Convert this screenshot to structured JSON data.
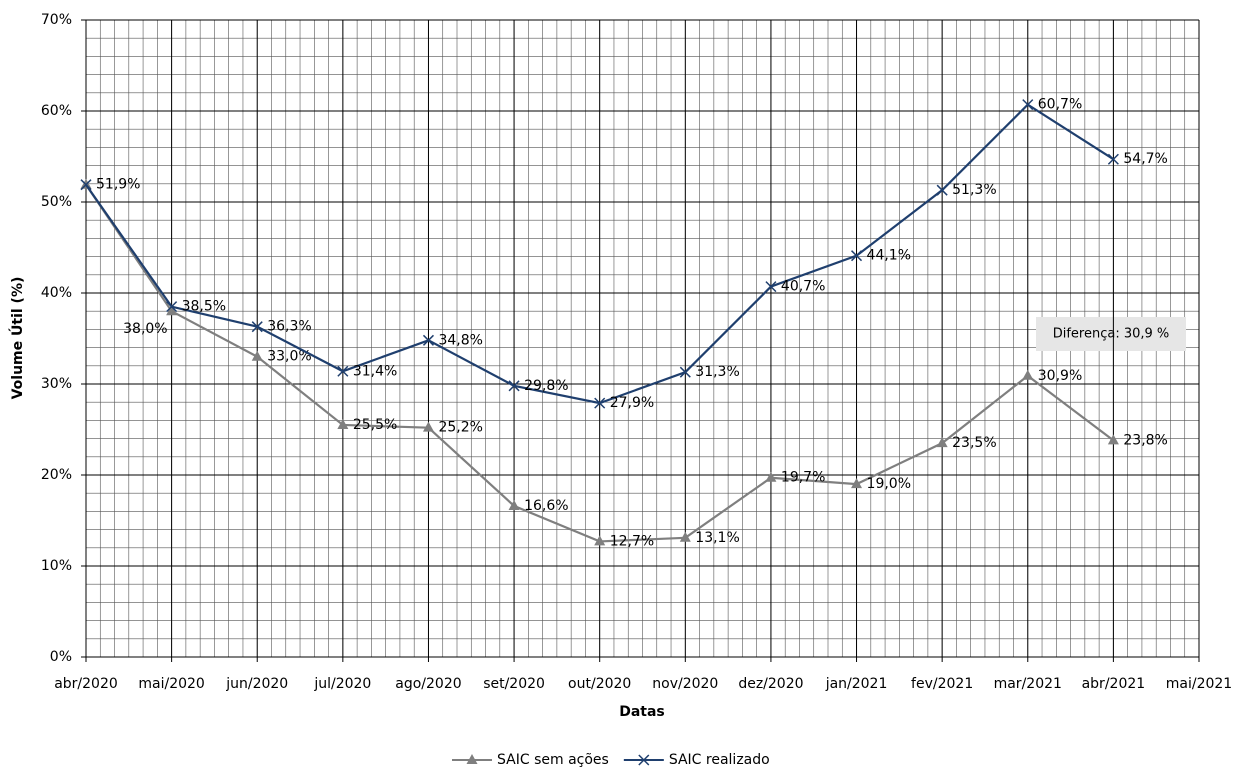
{
  "chart_data": {
    "type": "line",
    "x_label": "Datas",
    "y_label": "Volume Útil (%)",
    "annotation": "Diferença: 30,9 %",
    "categories": [
      "abr/2020",
      "mai/2020",
      "jun/2020",
      "jul/2020",
      "ago/2020",
      "set/2020",
      "out/2020",
      "nov/2020",
      "dez/2020",
      "jan/2021",
      "fev/2021",
      "mar/2021",
      "abr/2021",
      "mai/2021"
    ],
    "series": [
      {
        "name": "SAIC sem ações",
        "color": "#7f7f7f",
        "marker": "triangle",
        "values": [
          51.9,
          38.0,
          33.0,
          25.5,
          25.2,
          16.6,
          12.7,
          13.1,
          19.7,
          19.0,
          23.5,
          30.9,
          23.8,
          null
        ],
        "value_labels": [
          null,
          "38,0%",
          "33,0%",
          "25,5%",
          "25,2%",
          "16,6%",
          "12,7%",
          "13,1%",
          "19,7%",
          "19,0%",
          "23,5%",
          "30,9%",
          "23,8%",
          null
        ]
      },
      {
        "name": "SAIC realizado",
        "color": "#1f3f6e",
        "marker": "x",
        "values": [
          51.9,
          38.5,
          36.3,
          31.4,
          34.8,
          29.8,
          27.9,
          31.3,
          40.7,
          44.1,
          51.3,
          60.7,
          54.7,
          null
        ],
        "value_labels": [
          "51,9%",
          "38,5%",
          "36,3%",
          "31,4%",
          "34,8%",
          "29,8%",
          "27,9%",
          "31,3%",
          "40,7%",
          "44,1%",
          "51,3%",
          "60,7%",
          "54,7%",
          null
        ]
      }
    ],
    "ylim": [
      0,
      70
    ],
    "yticks": [
      {
        "value": 0,
        "label": "0%"
      },
      {
        "value": 10,
        "label": "10%"
      },
      {
        "value": 20,
        "label": "20%"
      },
      {
        "value": 30,
        "label": "30%"
      },
      {
        "value": 40,
        "label": "40%"
      },
      {
        "value": 50,
        "label": "50%"
      },
      {
        "value": 60,
        "label": "60%"
      },
      {
        "value": 70,
        "label": "70%"
      }
    ],
    "grid": true,
    "legend": "bottom"
  }
}
